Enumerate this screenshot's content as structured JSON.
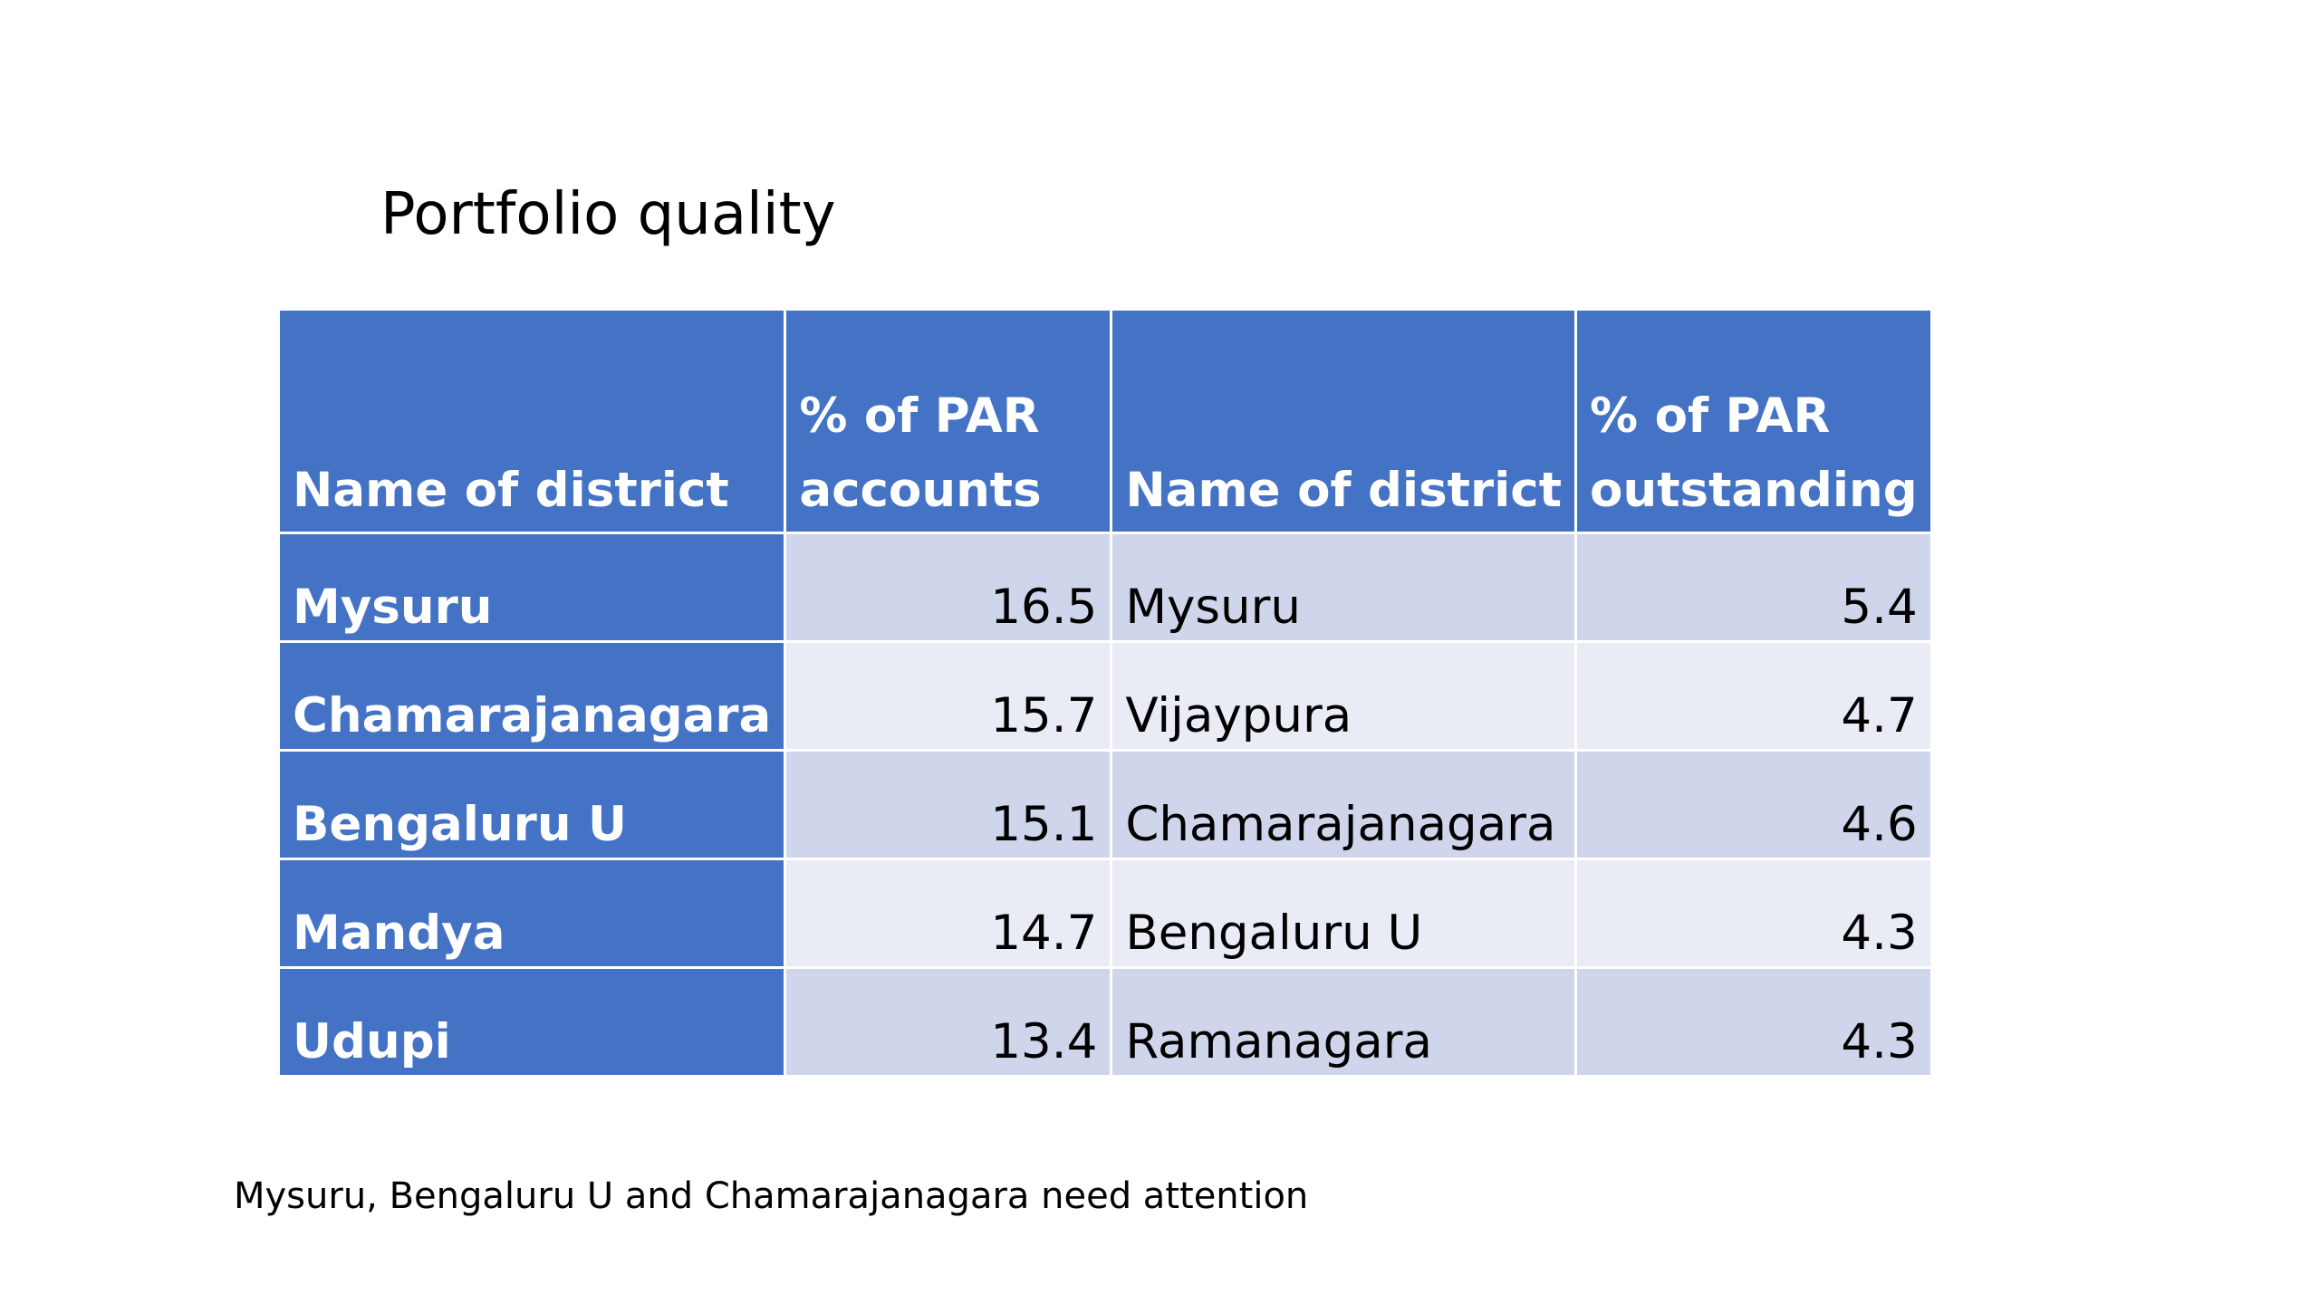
{
  "slide": {
    "title": "Portfolio quality",
    "footnote": "Mysuru, Bengaluru U and Chamarajanagara need attention"
  },
  "table": {
    "headers": {
      "col1_line1": "",
      "col1_line2": "Name of district",
      "col2_line1": "% of PAR",
      "col2_line2": "accounts",
      "col3_line1": "",
      "col3_line2": "Name of district",
      "col4_line1": "% of PAR",
      "col4_line2": "outstanding"
    },
    "rows": [
      {
        "district_accounts": "Mysuru",
        "par_accounts": "16.5",
        "district_outstanding": "Mysuru",
        "par_outstanding": "5.4"
      },
      {
        "district_accounts": "Chamarajanagara",
        "par_accounts": "15.7",
        "district_outstanding": "Vijaypura",
        "par_outstanding": "4.7"
      },
      {
        "district_accounts": "Bengaluru U",
        "par_accounts": "15.1",
        "district_outstanding": "Chamarajanagara",
        "par_outstanding": "4.6"
      },
      {
        "district_accounts": "Mandya",
        "par_accounts": "14.7",
        "district_outstanding": "Bengaluru U",
        "par_outstanding": "4.3"
      },
      {
        "district_accounts": "Udupi",
        "par_accounts": "13.4",
        "district_outstanding": "Ramanagara",
        "par_outstanding": "4.3"
      }
    ]
  },
  "colors": {
    "header_fill": "#4472c4",
    "band_dark": "#cfd5ea",
    "band_light": "#e9ebf5",
    "text_on_accent": "#ffffff"
  }
}
